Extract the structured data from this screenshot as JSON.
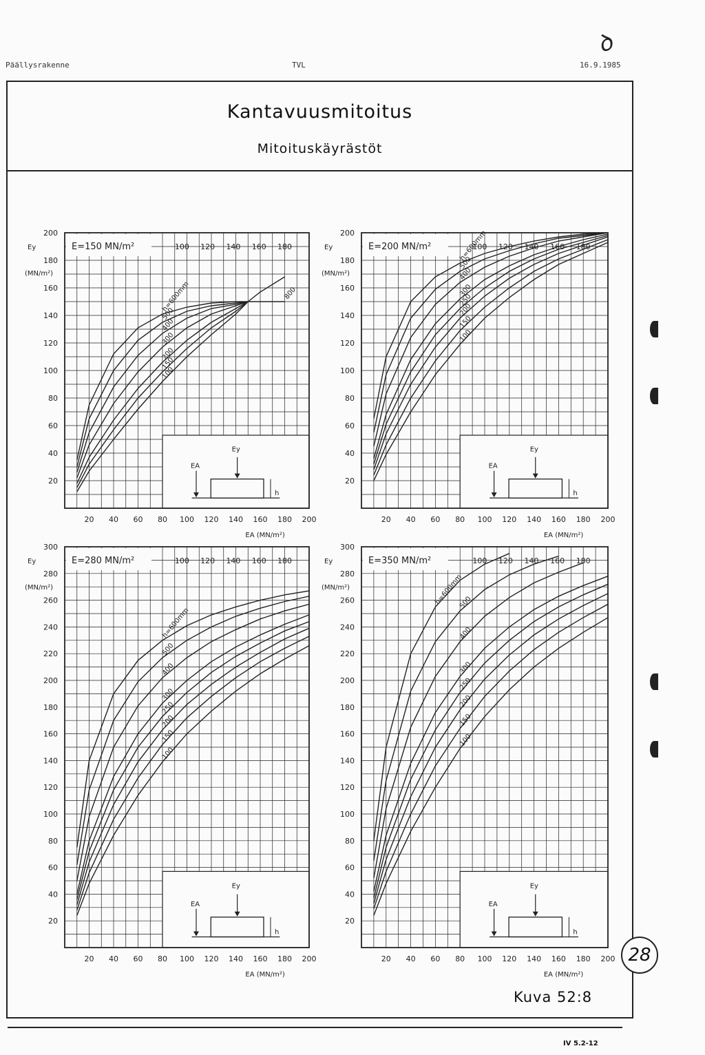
{
  "header": {
    "left": "Päällysrakenne",
    "center": "TVL",
    "right": "16.9.1985"
  },
  "title": "Kantavuusmitoitus",
  "subtitle": "Mitoituskäyrästöt",
  "figure_label": "Kuva 52:8",
  "page_code": "IV 5.2-12",
  "page_number": "28",
  "colors": {
    "ink": "#222222",
    "paper": "#fbfbfb"
  },
  "chart_data": [
    {
      "type": "line",
      "panel_label": "E=150 MN/m²",
      "ylabel_name": "Ey",
      "ylabel_unit": "(MN/m²)",
      "xlabel": "EA (MN/m²)",
      "x_tick_labels": [
        "20",
        "40",
        "60",
        "80",
        "100",
        "120",
        "140",
        "160",
        "180",
        "200"
      ],
      "top_tick_labels": [
        "100",
        "120",
        "140",
        "160",
        "180"
      ],
      "y_tick_labels": [
        "20",
        "40",
        "60",
        "80",
        "100",
        "120",
        "140",
        "160",
        "180",
        "200"
      ],
      "xlim": [
        0,
        200
      ],
      "ylim": [
        0,
        200
      ],
      "grid": true,
      "inset": {
        "ey": "Ey",
        "ea": "EA",
        "h": "h"
      },
      "series": [
        {
          "name": "h=600mm",
          "x": [
            10,
            20,
            40,
            60,
            80,
            100,
            120,
            140,
            150
          ],
          "y": [
            35,
            75,
            112,
            131,
            141,
            146,
            149,
            150,
            150
          ]
        },
        {
          "name": "500",
          "x": [
            10,
            20,
            40,
            60,
            80,
            100,
            120,
            140,
            150
          ],
          "y": [
            30,
            65,
            100,
            122,
            135,
            143,
            147,
            149,
            150
          ]
        },
        {
          "name": "400",
          "x": [
            10,
            20,
            40,
            60,
            80,
            100,
            120,
            140,
            150
          ],
          "y": [
            26,
            55,
            88,
            111,
            127,
            138,
            145,
            148,
            150
          ]
        },
        {
          "name": "300",
          "x": [
            10,
            20,
            40,
            60,
            80,
            100,
            120,
            140,
            150
          ],
          "y": [
            22,
            46,
            76,
            99,
            117,
            131,
            141,
            147,
            150
          ]
        },
        {
          "name": "200",
          "x": [
            10,
            20,
            40,
            60,
            80,
            100,
            120,
            140,
            150
          ],
          "y": [
            18,
            37,
            64,
            87,
            106,
            122,
            135,
            145,
            150
          ]
        },
        {
          "name": "150",
          "x": [
            10,
            20,
            40,
            60,
            80,
            100,
            120,
            140,
            150
          ],
          "y": [
            15,
            32,
            57,
            80,
            99,
            116,
            131,
            143,
            150
          ]
        },
        {
          "name": "100",
          "x": [
            10,
            20,
            40,
            60,
            80,
            100,
            120,
            140,
            150,
            160,
            180
          ],
          "y": [
            12,
            27,
            50,
            72,
            92,
            110,
            126,
            141,
            150,
            157,
            168
          ]
        },
        {
          "name": "800",
          "x": [
            150,
            180
          ],
          "y": [
            150,
            150
          ]
        }
      ]
    },
    {
      "type": "line",
      "panel_label": "E=200 MN/m²",
      "ylabel_name": "Ey",
      "ylabel_unit": "(MN/m²)",
      "xlabel": "EA (MN/m²)",
      "x_tick_labels": [
        "20",
        "40",
        "60",
        "80",
        "100",
        "120",
        "140",
        "160",
        "180",
        "200"
      ],
      "top_tick_labels": [
        "100",
        "120",
        "140",
        "160",
        "180"
      ],
      "y_tick_labels": [
        "20",
        "40",
        "60",
        "80",
        "100",
        "120",
        "140",
        "160",
        "180",
        "200"
      ],
      "xlim": [
        0,
        200
      ],
      "ylim": [
        0,
        200
      ],
      "grid": true,
      "inset": {
        "ey": "Ey",
        "ea": "EA",
        "h": "h"
      },
      "series": [
        {
          "name": "h=600mm",
          "x": [
            10,
            20,
            40,
            60,
            80,
            100,
            120,
            140,
            160,
            180,
            200
          ],
          "y": [
            65,
            110,
            150,
            168,
            178,
            185,
            190,
            194,
            197,
            199,
            200
          ]
        },
        {
          "name": "500",
          "x": [
            10,
            20,
            40,
            60,
            80,
            100,
            120,
            140,
            160,
            180,
            200
          ],
          "y": [
            55,
            97,
            138,
            159,
            172,
            181,
            187,
            192,
            196,
            198,
            200
          ]
        },
        {
          "name": "400",
          "x": [
            10,
            20,
            40,
            60,
            80,
            100,
            120,
            140,
            160,
            180,
            200
          ],
          "y": [
            45,
            83,
            124,
            148,
            164,
            175,
            183,
            189,
            194,
            197,
            200
          ]
        },
        {
          "name": "300",
          "x": [
            10,
            20,
            40,
            60,
            80,
            100,
            120,
            140,
            160,
            180,
            200
          ],
          "y": [
            36,
            68,
            108,
            134,
            152,
            166,
            176,
            184,
            190,
            195,
            199
          ]
        },
        {
          "name": "250",
          "x": [
            10,
            20,
            40,
            60,
            80,
            100,
            120,
            140,
            160,
            180,
            200
          ],
          "y": [
            32,
            61,
            99,
            126,
            145,
            160,
            172,
            181,
            188,
            193,
            198
          ]
        },
        {
          "name": "200",
          "x": [
            10,
            20,
            40,
            60,
            80,
            100,
            120,
            140,
            160,
            180,
            200
          ],
          "y": [
            28,
            54,
            90,
            117,
            138,
            154,
            167,
            177,
            185,
            191,
            197
          ]
        },
        {
          "name": "150",
          "x": [
            10,
            20,
            40,
            60,
            80,
            100,
            120,
            140,
            160,
            180,
            200
          ],
          "y": [
            24,
            46,
            80,
            107,
            129,
            146,
            160,
            172,
            181,
            188,
            195
          ]
        },
        {
          "name": "100",
          "x": [
            10,
            20,
            40,
            60,
            80,
            100,
            120,
            140,
            160,
            180,
            200
          ],
          "y": [
            20,
            39,
            70,
            97,
            119,
            138,
            153,
            166,
            177,
            185,
            193
          ]
        }
      ]
    },
    {
      "type": "line",
      "panel_label": "E=280 MN/m²",
      "ylabel_name": "Ey",
      "ylabel_unit": "(MN/m²)",
      "xlabel": "EA (MN/m²)",
      "x_tick_labels": [
        "20",
        "40",
        "60",
        "80",
        "100",
        "120",
        "140",
        "160",
        "180",
        "200"
      ],
      "top_tick_labels": [
        "100",
        "120",
        "140",
        "160",
        "180"
      ],
      "y_tick_labels": [
        "20",
        "40",
        "60",
        "80",
        "100",
        "120",
        "140",
        "160",
        "180",
        "200",
        "220",
        "240",
        "260",
        "280",
        "300"
      ],
      "xlim": [
        0,
        200
      ],
      "ylim": [
        0,
        300
      ],
      "grid": true,
      "inset": {
        "ey": "Ey",
        "ea": "EA",
        "h": "h"
      },
      "series": [
        {
          "name": "h=600mm",
          "x": [
            10,
            20,
            40,
            60,
            80,
            100,
            120,
            140,
            160,
            180,
            200
          ],
          "y": [
            75,
            140,
            190,
            215,
            230,
            241,
            249,
            255,
            260,
            264,
            267
          ]
        },
        {
          "name": "500",
          "x": [
            10,
            20,
            40,
            60,
            80,
            100,
            120,
            140,
            160,
            180,
            200
          ],
          "y": [
            62,
            118,
            170,
            199,
            217,
            230,
            240,
            248,
            254,
            259,
            263
          ]
        },
        {
          "name": "400",
          "x": [
            10,
            20,
            40,
            60,
            80,
            100,
            120,
            140,
            160,
            180,
            200
          ],
          "y": [
            50,
            98,
            150,
            181,
            202,
            217,
            229,
            238,
            246,
            252,
            257
          ]
        },
        {
          "name": "300",
          "x": [
            10,
            20,
            40,
            60,
            80,
            100,
            120,
            140,
            160,
            180,
            200
          ],
          "y": [
            40,
            80,
            128,
            160,
            183,
            200,
            214,
            225,
            234,
            242,
            249
          ]
        },
        {
          "name": "250",
          "x": [
            10,
            20,
            40,
            60,
            80,
            100,
            120,
            140,
            160,
            180,
            200
          ],
          "y": [
            36,
            72,
            118,
            150,
            173,
            191,
            206,
            218,
            228,
            237,
            244
          ]
        },
        {
          "name": "200",
          "x": [
            10,
            20,
            40,
            60,
            80,
            100,
            120,
            140,
            160,
            180,
            200
          ],
          "y": [
            32,
            64,
            107,
            139,
            163,
            182,
            197,
            210,
            221,
            231,
            239
          ]
        },
        {
          "name": "150",
          "x": [
            10,
            20,
            40,
            60,
            80,
            100,
            120,
            140,
            160,
            180,
            200
          ],
          "y": [
            28,
            56,
            96,
            127,
            152,
            172,
            188,
            202,
            214,
            224,
            233
          ]
        },
        {
          "name": "100",
          "x": [
            10,
            20,
            40,
            60,
            80,
            100,
            120,
            140,
            160,
            180,
            200
          ],
          "y": [
            24,
            48,
            84,
            114,
            139,
            160,
            177,
            192,
            205,
            216,
            226
          ]
        }
      ]
    },
    {
      "type": "line",
      "panel_label": "E=350 MN/m²",
      "ylabel_name": "Ey",
      "ylabel_unit": "(MN/m²)",
      "xlabel": "EA (MN/m²)",
      "x_tick_labels": [
        "20",
        "40",
        "60",
        "80",
        "100",
        "120",
        "140",
        "160",
        "180",
        "200"
      ],
      "top_tick_labels": [
        "100",
        "120",
        "140",
        "160",
        "180"
      ],
      "y_tick_labels": [
        "20",
        "40",
        "60",
        "80",
        "100",
        "120",
        "140",
        "160",
        "180",
        "200",
        "220",
        "240",
        "260",
        "280",
        "300"
      ],
      "xlim": [
        0,
        200
      ],
      "ylim": [
        0,
        300
      ],
      "grid": true,
      "inset": {
        "ey": "Ey",
        "ea": "EA",
        "h": "h"
      },
      "series": [
        {
          "name": "h=600mm",
          "x": [
            10,
            20,
            40,
            60,
            80,
            100,
            120
          ],
          "y": [
            80,
            150,
            220,
            255,
            275,
            287,
            295
          ]
        },
        {
          "name": "500",
          "x": [
            10,
            20,
            40,
            60,
            80,
            100,
            120,
            140,
            160
          ],
          "y": [
            65,
            125,
            192,
            229,
            252,
            268,
            279,
            287,
            293
          ]
        },
        {
          "name": "400",
          "x": [
            10,
            20,
            40,
            60,
            80,
            100,
            120,
            140,
            160,
            180
          ],
          "y": [
            52,
            104,
            165,
            203,
            229,
            248,
            262,
            273,
            281,
            288
          ]
        },
        {
          "name": "300",
          "x": [
            10,
            20,
            40,
            60,
            80,
            100,
            120,
            140,
            160,
            180,
            200
          ],
          "y": [
            42,
            84,
            138,
            176,
            203,
            224,
            240,
            253,
            263,
            271,
            278
          ]
        },
        {
          "name": "250",
          "x": [
            10,
            20,
            40,
            60,
            80,
            100,
            120,
            140,
            160,
            180,
            200
          ],
          "y": [
            37,
            75,
            126,
            163,
            191,
            213,
            230,
            244,
            255,
            264,
            272
          ]
        },
        {
          "name": "200",
          "x": [
            10,
            20,
            40,
            60,
            80,
            100,
            120,
            140,
            160,
            180,
            200
          ],
          "y": [
            33,
            66,
            113,
            150,
            178,
            201,
            219,
            234,
            246,
            256,
            265
          ]
        },
        {
          "name": "150",
          "x": [
            10,
            20,
            40,
            60,
            80,
            100,
            120,
            140,
            160,
            180,
            200
          ],
          "y": [
            29,
            57,
            100,
            136,
            164,
            188,
            207,
            223,
            236,
            247,
            257
          ]
        },
        {
          "name": "100",
          "x": [
            10,
            20,
            40,
            60,
            80,
            100,
            120,
            140,
            160,
            180,
            200
          ],
          "y": [
            24,
            48,
            87,
            120,
            149,
            173,
            193,
            210,
            224,
            236,
            247
          ]
        }
      ]
    }
  ]
}
